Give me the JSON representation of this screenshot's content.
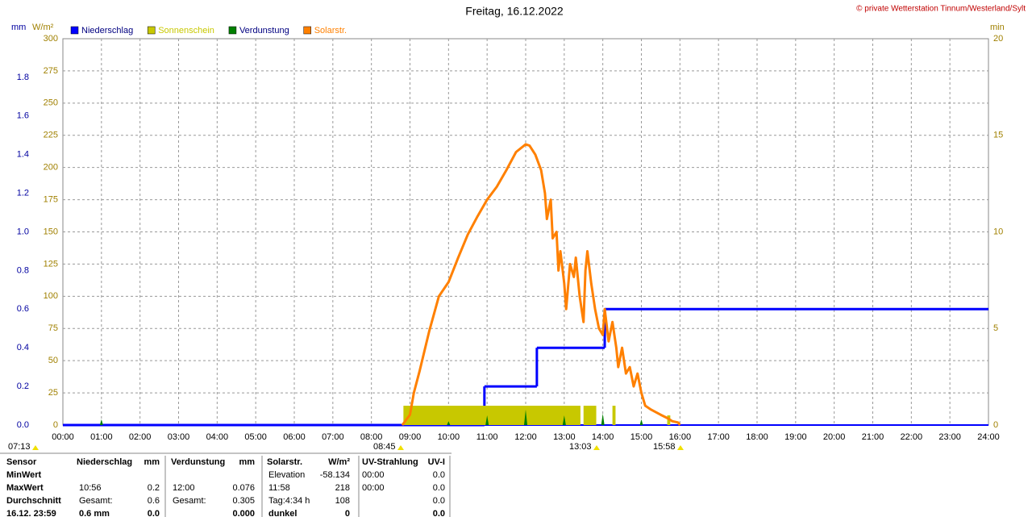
{
  "chart_data": {
    "type": "weather-day",
    "title": "Freitag, 16.12.2022",
    "credit": "© private Wetterstation Tinnum/Westerland/Sylt",
    "ylabel": "W/m²",
    "y2label": "mm",
    "y3label": "min",
    "xlim": [
      0,
      24
    ],
    "xticks": [
      {
        "value": 0,
        "label": "00:00"
      },
      {
        "value": 1,
        "label": "01:00"
      },
      {
        "value": 2,
        "label": "02:00"
      },
      {
        "value": 3,
        "label": "03:00"
      },
      {
        "value": 4,
        "label": "04:00"
      },
      {
        "value": 5,
        "label": "05:00"
      },
      {
        "value": 6,
        "label": "06:00"
      },
      {
        "value": 7,
        "label": "07:00"
      },
      {
        "value": 8,
        "label": "08:00"
      },
      {
        "value": 9,
        "label": "09:00"
      },
      {
        "value": 10,
        "label": "10:00"
      },
      {
        "value": 11,
        "label": "11:00"
      },
      {
        "value": 12,
        "label": "12:00"
      },
      {
        "value": 13,
        "label": "13:00"
      },
      {
        "value": 14,
        "label": "14:00"
      },
      {
        "value": 15,
        "label": "15:00"
      },
      {
        "value": 16,
        "label": "16:00"
      },
      {
        "value": 17,
        "label": "17:00"
      },
      {
        "value": 18,
        "label": "18:00"
      },
      {
        "value": 19,
        "label": "19:00"
      },
      {
        "value": 20,
        "label": "20:00"
      },
      {
        "value": 21,
        "label": "21:00"
      },
      {
        "value": 22,
        "label": "22:00"
      },
      {
        "value": 23,
        "label": "23:00"
      },
      {
        "value": 24,
        "label": "24:00"
      }
    ],
    "ylim": [
      0,
      300
    ],
    "yticks": [
      0,
      25,
      50,
      75,
      100,
      125,
      150,
      175,
      200,
      225,
      250,
      275,
      300
    ],
    "y2lim": [
      0,
      2
    ],
    "y2ticks": [
      {
        "value": 0,
        "label": "0.0"
      },
      {
        "value": 0.2,
        "label": "0.2"
      },
      {
        "value": 0.4,
        "label": "0.4"
      },
      {
        "value": 0.6,
        "label": "0.6"
      },
      {
        "value": 0.8,
        "label": "0.8"
      },
      {
        "value": 1,
        "label": "1.0"
      },
      {
        "value": 1.2,
        "label": "1.2"
      },
      {
        "value": 1.4,
        "label": "1.4"
      },
      {
        "value": 1.6,
        "label": "1.6"
      },
      {
        "value": 1.8,
        "label": "1.8"
      }
    ],
    "y3lim": [
      0,
      20
    ],
    "y3ticks": [
      0,
      5,
      10,
      15,
      20
    ],
    "grid": true,
    "series": [
      {
        "name": "Niederschlag",
        "color": "#0000ff",
        "kind": "step",
        "axis": "y2",
        "x": [
          0,
          10.93,
          12.29,
          14.05,
          24
        ],
        "values": [
          0,
          0.2,
          0.4,
          0.6,
          0.6
        ]
      },
      {
        "name": "Sonnenschein",
        "color": "#c8c800",
        "kind": "step-area",
        "axis": "y3",
        "x": [
          8.83,
          13.42,
          13.5,
          13.83,
          14.25,
          14.33,
          15.67,
          15.75
        ],
        "values": [
          1,
          0,
          1,
          0,
          1,
          0,
          0.5,
          0
        ]
      },
      {
        "name": "Verdunstung",
        "color": "#008000",
        "kind": "spikes",
        "axis": "y2",
        "x": [
          1,
          10,
          11,
          12,
          13,
          14,
          15
        ],
        "values": [
          0.03,
          0.02,
          0.05,
          0.08,
          0.05,
          0.06,
          0.03
        ]
      },
      {
        "name": "Solarstr.",
        "color": "#ff8000",
        "kind": "line",
        "axis": "y",
        "x": [
          8.8,
          9.0,
          9.1,
          9.25,
          9.5,
          9.75,
          10.0,
          10.25,
          10.5,
          10.75,
          11.0,
          11.25,
          11.5,
          11.75,
          12.0,
          12.1,
          12.25,
          12.4,
          12.5,
          12.55,
          12.65,
          12.7,
          12.8,
          12.85,
          12.9,
          13.0,
          13.05,
          13.15,
          13.25,
          13.3,
          13.4,
          13.5,
          13.55,
          13.6,
          13.7,
          13.75,
          13.8,
          13.9,
          14.0,
          14.05,
          14.15,
          14.25,
          14.35,
          14.4,
          14.5,
          14.6,
          14.7,
          14.8,
          14.9,
          15.0,
          15.1,
          15.25,
          15.5,
          15.7,
          15.8,
          15.95,
          16.0
        ],
        "values": [
          0,
          8,
          25,
          42,
          73,
          100,
          111,
          130,
          148,
          162,
          175,
          185,
          198,
          212,
          218,
          217,
          210,
          198,
          180,
          160,
          175,
          145,
          150,
          120,
          135,
          110,
          90,
          125,
          115,
          130,
          100,
          80,
          120,
          135,
          110,
          100,
          90,
          75,
          70,
          90,
          65,
          80,
          60,
          45,
          60,
          40,
          45,
          30,
          40,
          25,
          15,
          12,
          8,
          5,
          3,
          2,
          0
        ]
      }
    ],
    "annotations": [
      "07:13",
      "08:45",
      "13:03",
      "15:58"
    ]
  },
  "stats": {
    "header": [
      "Sensor",
      "Niederschlag",
      "mm",
      "Verdunstung",
      "mm",
      "Solarstr.",
      "W/m²",
      "UV-Strahlung",
      "UV-I"
    ],
    "rows": [
      [
        "MinWert",
        null,
        null,
        null,
        null,
        "Elevation",
        "-58.134",
        "00:00",
        "0.0"
      ],
      [
        "MaxWert",
        "10:56",
        "0.2",
        "12:00",
        "0.076",
        "11:58",
        "218",
        "00:00",
        "0.0"
      ],
      [
        "Durchschnitt",
        "Gesamt:",
        "0.6",
        "Gesamt:",
        "0.305",
        "Tag:4:34 h",
        "108",
        null,
        "0.0"
      ],
      [
        "16.12. 23:59",
        "0.6 mm",
        "0.0",
        null,
        "0.000",
        "dunkel",
        "0",
        null,
        "0.0"
      ]
    ]
  }
}
